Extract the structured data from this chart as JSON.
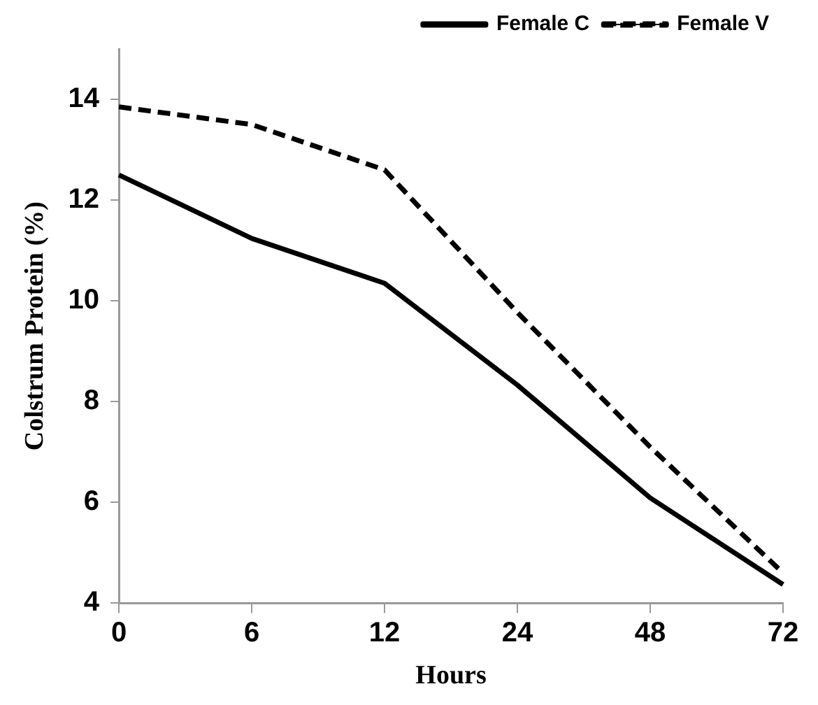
{
  "chart_data": {
    "type": "line",
    "xlabel": "Hours",
    "ylabel": "Colstrum Protein (%)",
    "categories": [
      "0",
      "6",
      "12",
      "24",
      "48",
      "72"
    ],
    "series": [
      {
        "name": "Female C",
        "color": "#000000",
        "line_style": "solid",
        "values": [
          12.5,
          11.24,
          10.35,
          8.33,
          6.09,
          4.37
        ]
      },
      {
        "name": "Female V",
        "color": "#000000",
        "line_style": "dashed",
        "values": [
          13.85,
          13.5,
          12.6,
          9.77,
          7.1,
          4.6
        ]
      }
    ],
    "ylim": [
      4,
      15
    ],
    "yticks": [
      4,
      6,
      8,
      10,
      12,
      14
    ],
    "grid": false,
    "legend": "top right",
    "marker": "none"
  }
}
